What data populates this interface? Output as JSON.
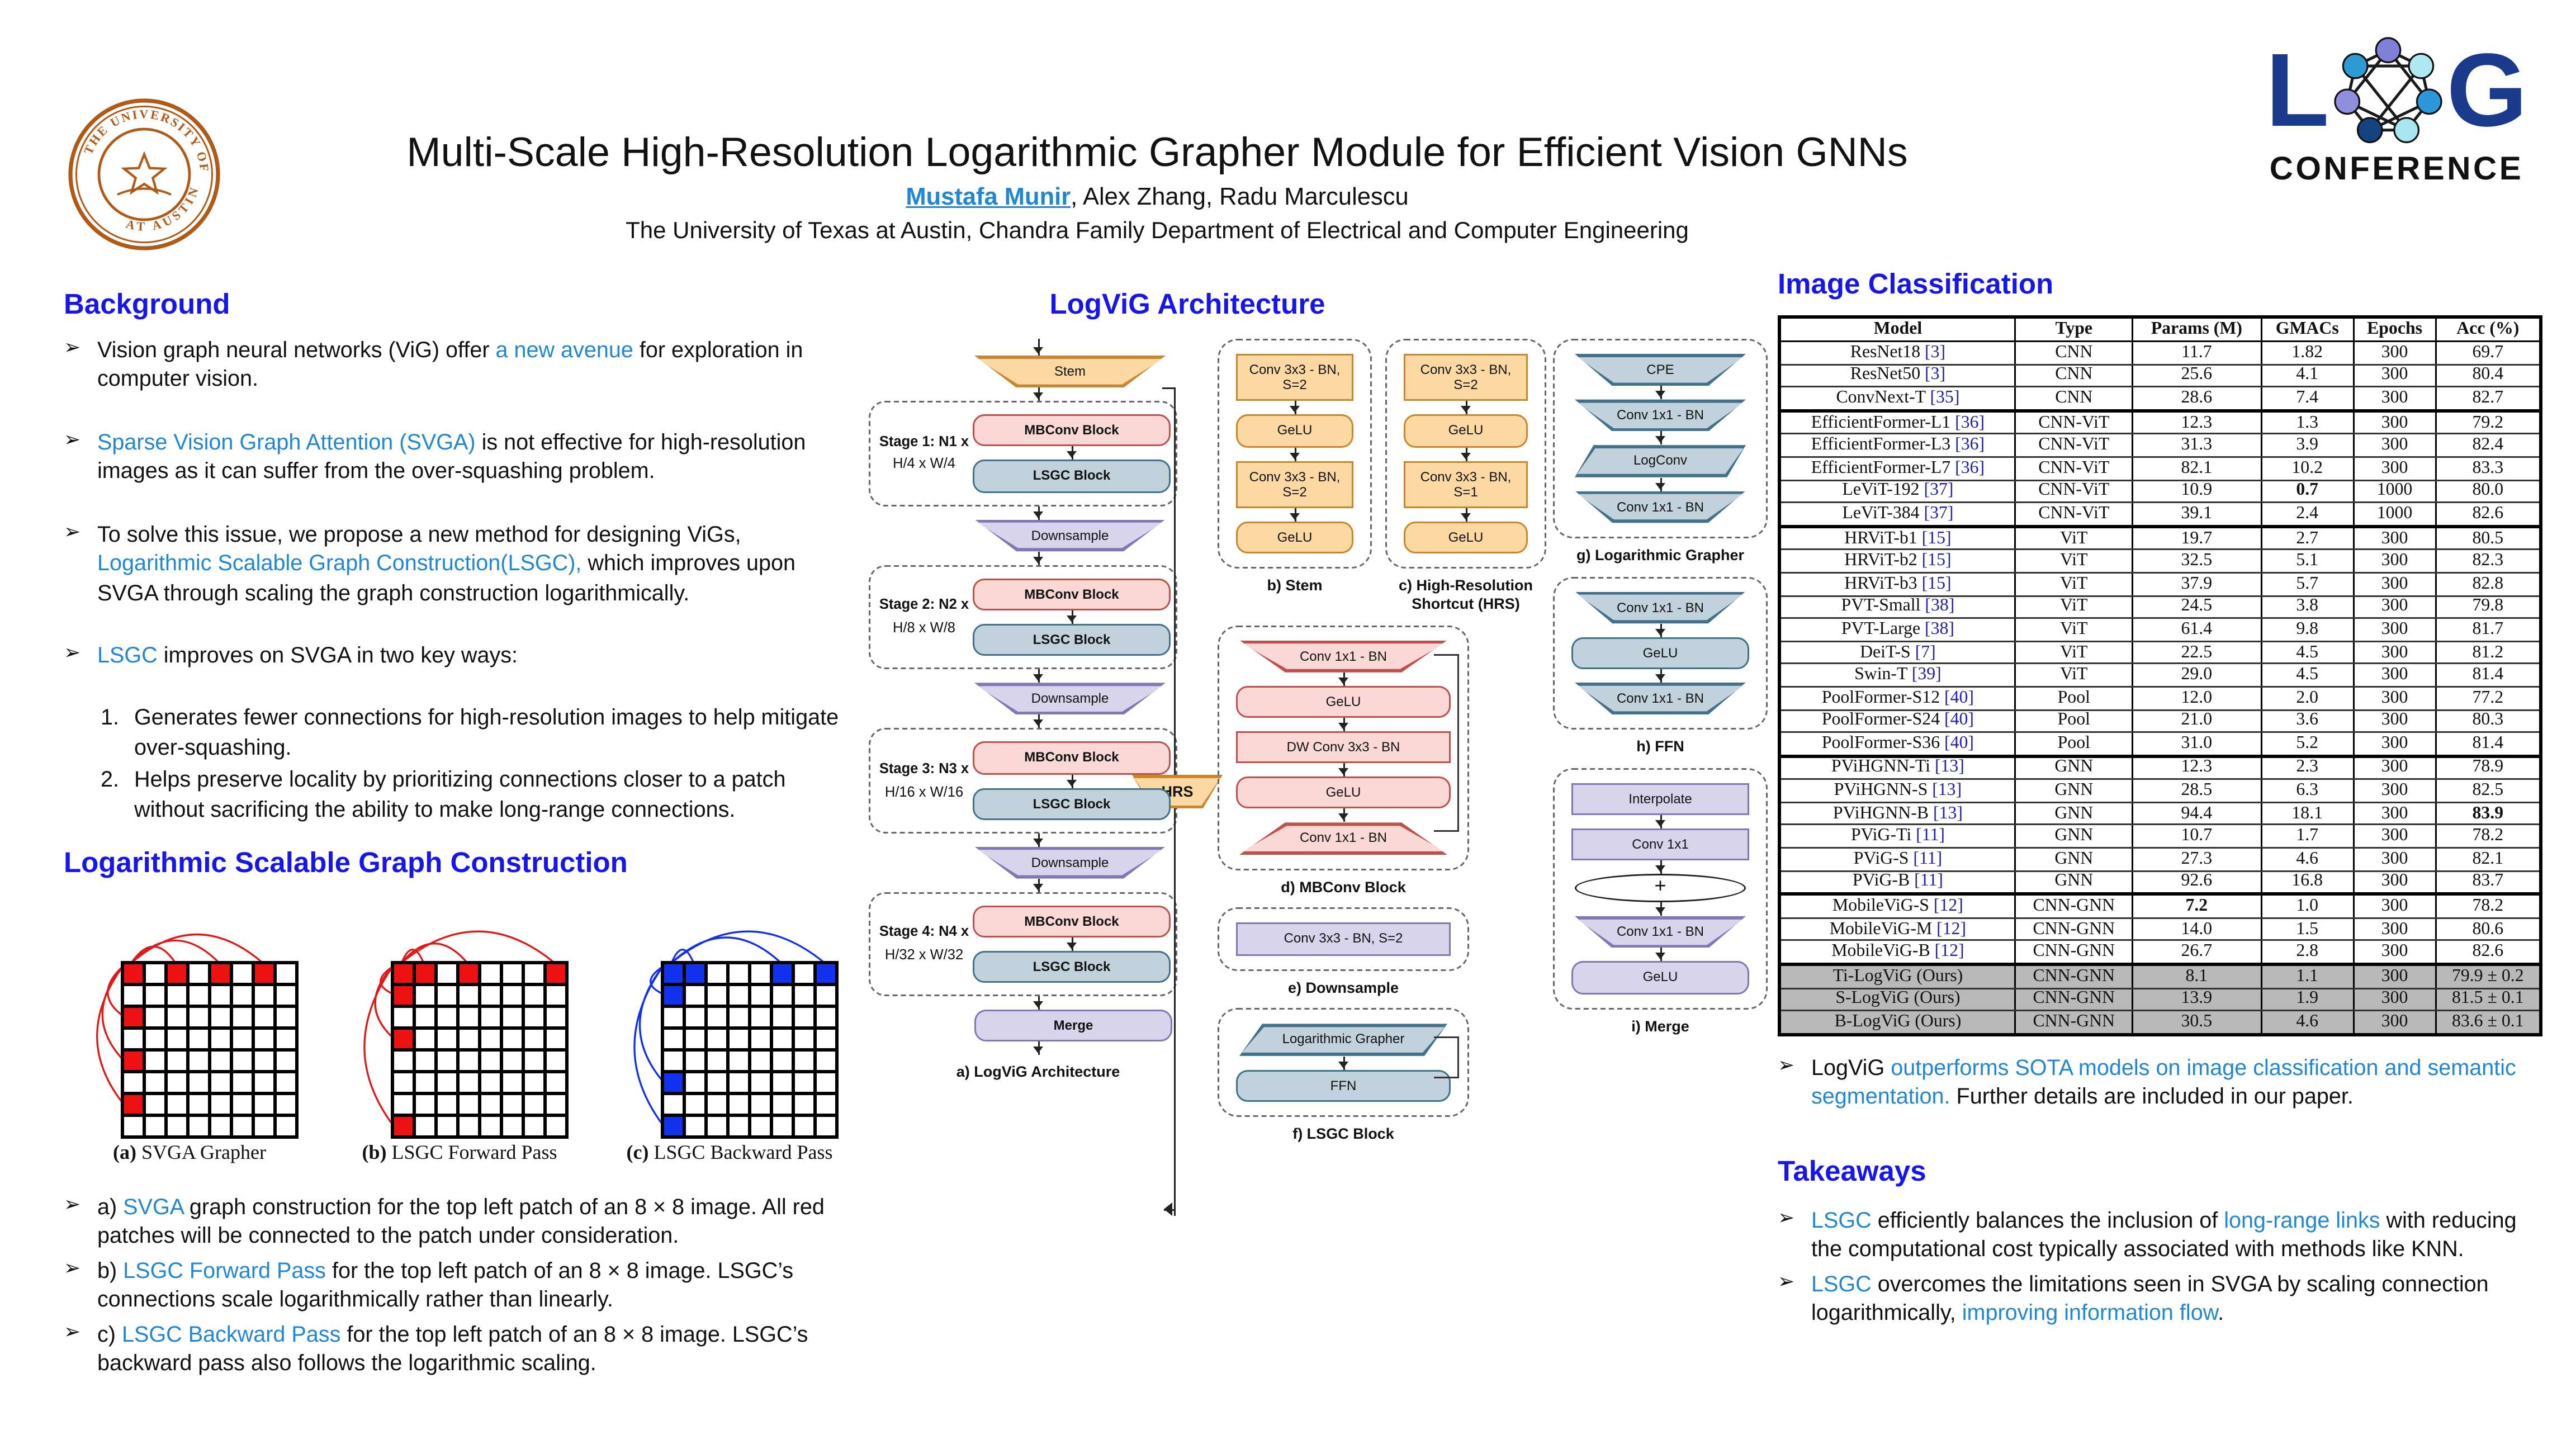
{
  "header": {
    "title": "Multi-Scale High-Resolution Logarithmic Grapher Module for Efficient Vision GNNs",
    "authors": [
      {
        "t": "Mustafa Munir",
        "hl": true
      },
      {
        "t": ", Alex Zhang, Radu Marculescu"
      }
    ],
    "affiliation": "The University of Texas at Austin, Chandra Family Department of Electrical and Computer Engineering",
    "seal": {
      "top_text": "THE UNIVERSITY OF TEXAS",
      "bottom_text": "AT AUSTIN",
      "color": "#b05a17"
    },
    "logo": {
      "letter_l": "L",
      "letter_g": "G",
      "subtitle": "CONFERENCE",
      "navy": "#1b3a8c"
    }
  },
  "background": {
    "heading": "Background",
    "bullets": [
      [
        {
          "t": "Vision graph neural networks (ViG) offer "
        },
        {
          "t": "a new avenue",
          "hl": true
        },
        {
          "t": " for exploration in computer vision."
        }
      ],
      [
        {
          "t": "Sparse Vision Graph Attention (SVGA)",
          "hl": true
        },
        {
          "t": " is not effective for high-resolution images as it can suffer from the over-squashing problem."
        }
      ],
      [
        {
          "t": "To solve this issue, we propose a new method for designing ViGs, "
        },
        {
          "t": "Logarithmic Scalable Graph Construction(LSGC),",
          "hl": true
        },
        {
          "t": "  which improves upon SVGA through scaling the graph construction logarithmically."
        }
      ],
      [
        {
          "t": "LSGC",
          "hl": true
        },
        {
          "t": " improves on SVGA in two key ways:"
        }
      ]
    ],
    "numbered": [
      "Generates fewer connections for high-resolution images to help mitigate over-squashing.",
      "Helps preserve locality by prioritizing connections closer to a patch without sacrificing the ability to make long-range connections."
    ]
  },
  "lsgc_section": {
    "heading": "Logarithmic Scalable Graph Construction",
    "figures": [
      {
        "cap_b": "(a)",
        "cap": " SVGA Grapher",
        "color": "red",
        "top_row": [
          0,
          2,
          4,
          6
        ],
        "left_col": [
          2,
          4,
          6
        ]
      },
      {
        "cap_b": "(b)",
        "cap": " LSGC Forward Pass",
        "color": "red",
        "top_row": [
          0,
          1,
          3,
          7
        ],
        "left_col": [
          1,
          3,
          7
        ]
      },
      {
        "cap_b": "(c)",
        "cap": " LSGC Backward Pass",
        "color": "blue",
        "top_row": [
          0,
          1,
          5,
          7
        ],
        "left_col": [
          1,
          5,
          7
        ]
      }
    ],
    "bullets": [
      [
        {
          "t": "a) "
        },
        {
          "t": "SVGA",
          "hl": true
        },
        {
          "t": " graph construction for the top left patch of an 8 × 8 image. All red patches will be connected to the patch under consideration."
        }
      ],
      [
        {
          "t": "b) "
        },
        {
          "t": "LSGC Forward Pass",
          "hl": true
        },
        {
          "t": " for the top left patch of an 8 × 8 image. LSGC’s connections scale logarithmically rather than linearly."
        }
      ],
      [
        {
          "t": "c) "
        },
        {
          "t": "LSGC Backward Pass",
          "hl": true
        },
        {
          "t": " for the top left patch of an 8 × 8 image. LSGC’s backward pass also follows the logarithmic scaling."
        }
      ]
    ]
  },
  "architecture": {
    "heading": "LogViG Architecture",
    "main": {
      "stem": "Stem",
      "downsample": "Downsample",
      "merge": "Merge",
      "hrs": "HRS",
      "caption": "a) LogViG Architecture",
      "stages": [
        {
          "label1": "Stage 1: N1 x",
          "label2": "H/4 x W/4",
          "blocks": [
            "MBConv Block",
            "LSGC Block"
          ]
        },
        {
          "label1": "Stage 2: N2 x",
          "label2": "H/8 x W/8",
          "blocks": [
            "MBConv Block",
            "LSGC Block"
          ]
        },
        {
          "label1": "Stage 3: N3 x",
          "label2": "H/16 x W/16",
          "blocks": [
            "MBConv Block",
            "LSGC Block"
          ]
        },
        {
          "label1": "Stage 4: N4 x",
          "label2": "H/32 x W/32",
          "blocks": [
            "MBConv Block",
            "LSGC Block"
          ]
        }
      ]
    },
    "figures": [
      {
        "id": "b",
        "caption": "b)  Stem",
        "skip": false,
        "nodes": [
          {
            "t": "Conv 3x3 - BN, S=2",
            "s": "rect",
            "c": "orange"
          },
          {
            "t": "GeLU",
            "s": "round",
            "c": "orange"
          },
          {
            "t": "Conv 3x3 - BN, S=2",
            "s": "rect",
            "c": "orange"
          },
          {
            "t": "GeLU",
            "s": "round",
            "c": "orange"
          }
        ]
      },
      {
        "id": "c",
        "caption": "c) High-Resolution Shortcut (HRS)",
        "skip": false,
        "nodes": [
          {
            "t": "Conv 3x3 - BN, S=2",
            "s": "rect",
            "c": "orange"
          },
          {
            "t": "GeLU",
            "s": "round",
            "c": "orange"
          },
          {
            "t": "Conv 3x3 - BN, S=1",
            "s": "rect",
            "c": "orange"
          },
          {
            "t": "GeLU",
            "s": "round",
            "c": "orange"
          }
        ]
      },
      {
        "id": "d",
        "caption": "d) MBConv Block",
        "skip": true,
        "nodes": [
          {
            "t": "Conv 1x1 - BN",
            "s": "trapd",
            "c": "pink"
          },
          {
            "t": "GeLU",
            "s": "round",
            "c": "pink"
          },
          {
            "t": "DW Conv 3x3 - BN",
            "s": "rect",
            "c": "pink"
          },
          {
            "t": "GeLU",
            "s": "round",
            "c": "pink"
          },
          {
            "t": "Conv 1x1 - BN",
            "s": "trapu",
            "c": "pink"
          }
        ]
      },
      {
        "id": "e",
        "caption": "e) Downsample",
        "skip": false,
        "nodes": [
          {
            "t": "Conv 3x3 - BN, S=2",
            "s": "rect",
            "c": "purple"
          }
        ]
      },
      {
        "id": "f",
        "caption": "f) LSGC Block",
        "skip": true,
        "nodes": [
          {
            "t": "Logarithmic Grapher",
            "s": "para",
            "c": "steel"
          },
          {
            "t": "FFN",
            "s": "round",
            "c": "steel"
          }
        ]
      },
      {
        "id": "g",
        "caption": "g) Logarithmic Grapher",
        "skip": false,
        "nodes": [
          {
            "t": "CPE",
            "s": "trapd",
            "c": "steel"
          },
          {
            "t": "Conv 1x1 - BN",
            "s": "trapd",
            "c": "steel"
          },
          {
            "t": "LogConv",
            "s": "para",
            "c": "steel"
          },
          {
            "t": "Conv 1x1 - BN",
            "s": "trapd",
            "c": "steel"
          }
        ]
      },
      {
        "id": "h",
        "caption": "h) FFN",
        "skip": false,
        "nodes": [
          {
            "t": "Conv 1x1 - BN",
            "s": "trapd",
            "c": "steel"
          },
          {
            "t": "GeLU",
            "s": "round",
            "c": "steel"
          },
          {
            "t": "Conv 1x1 - BN",
            "s": "trapd",
            "c": "steel"
          }
        ]
      },
      {
        "id": "i",
        "caption": "i) Merge",
        "skip": false,
        "nodes": [
          {
            "t": "Interpolate",
            "s": "rect",
            "c": "purple"
          },
          {
            "t": "Conv 1x1",
            "s": "rect",
            "c": "purple"
          },
          {
            "t": "⊕",
            "s": "plus",
            "c": "none"
          },
          {
            "t": "Conv 1x1 - BN",
            "s": "trapd",
            "c": "purple"
          },
          {
            "t": "GeLU",
            "s": "round",
            "c": "purple"
          }
        ]
      }
    ]
  },
  "classification": {
    "heading": "Image Classification",
    "table": {
      "columns": [
        "Model",
        "Type",
        "Params (M)",
        "GMACs",
        "Epochs",
        "Acc (%)"
      ],
      "rows": [
        {
          "model": "ResNet18",
          "cite": "3",
          "type": "CNN",
          "params": "11.7",
          "gmacs": "1.82",
          "epochs": "300",
          "acc": "69.7"
        },
        {
          "model": "ResNet50",
          "cite": "3",
          "type": "CNN",
          "params": "25.6",
          "gmacs": "4.1",
          "epochs": "300",
          "acc": "80.4"
        },
        {
          "model": "ConvNext-T",
          "cite": "35",
          "type": "CNN",
          "params": "28.6",
          "gmacs": "7.4",
          "epochs": "300",
          "acc": "82.7"
        },
        {
          "model": "EfficientFormer-L1",
          "cite": "36",
          "type": "CNN-ViT",
          "params": "12.3",
          "gmacs": "1.3",
          "epochs": "300",
          "acc": "79.2",
          "group": true
        },
        {
          "model": "EfficientFormer-L3",
          "cite": "36",
          "type": "CNN-ViT",
          "params": "31.3",
          "gmacs": "3.9",
          "epochs": "300",
          "acc": "82.4"
        },
        {
          "model": "EfficientFormer-L7",
          "cite": "36",
          "type": "CNN-ViT",
          "params": "82.1",
          "gmacs": "10.2",
          "epochs": "300",
          "acc": "83.3"
        },
        {
          "model": "LeViT-192",
          "cite": "37",
          "type": "CNN-ViT",
          "params": "10.9",
          "gmacs": "0.7",
          "epochs": "1000",
          "acc": "80.0",
          "b": [
            "gmacs"
          ]
        },
        {
          "model": "LeViT-384",
          "cite": "37",
          "type": "CNN-ViT",
          "params": "39.1",
          "gmacs": "2.4",
          "epochs": "1000",
          "acc": "82.6"
        },
        {
          "model": "HRViT-b1",
          "cite": "15",
          "type": "ViT",
          "params": "19.7",
          "gmacs": "2.7",
          "epochs": "300",
          "acc": "80.5",
          "group": true
        },
        {
          "model": "HRViT-b2",
          "cite": "15",
          "type": "ViT",
          "params": "32.5",
          "gmacs": "5.1",
          "epochs": "300",
          "acc": "82.3"
        },
        {
          "model": "HRViT-b3",
          "cite": "15",
          "type": "ViT",
          "params": "37.9",
          "gmacs": "5.7",
          "epochs": "300",
          "acc": "82.8"
        },
        {
          "model": "PVT-Small",
          "cite": "38",
          "type": "ViT",
          "params": "24.5",
          "gmacs": "3.8",
          "epochs": "300",
          "acc": "79.8"
        },
        {
          "model": "PVT-Large",
          "cite": "38",
          "type": "ViT",
          "params": "61.4",
          "gmacs": "9.8",
          "epochs": "300",
          "acc": "81.7"
        },
        {
          "model": "DeiT-S",
          "cite": "7",
          "type": "ViT",
          "params": "22.5",
          "gmacs": "4.5",
          "epochs": "300",
          "acc": "81.2"
        },
        {
          "model": "Swin-T",
          "cite": "39",
          "type": "ViT",
          "params": "29.0",
          "gmacs": "4.5",
          "epochs": "300",
          "acc": "81.4"
        },
        {
          "model": "PoolFormer-S12",
          "cite": "40",
          "type": "Pool",
          "params": "12.0",
          "gmacs": "2.0",
          "epochs": "300",
          "acc": "77.2"
        },
        {
          "model": "PoolFormer-S24",
          "cite": "40",
          "type": "Pool",
          "params": "21.0",
          "gmacs": "3.6",
          "epochs": "300",
          "acc": "80.3"
        },
        {
          "model": "PoolFormer-S36",
          "cite": "40",
          "type": "Pool",
          "params": "31.0",
          "gmacs": "5.2",
          "epochs": "300",
          "acc": "81.4"
        },
        {
          "model": "PViHGNN-Ti",
          "cite": "13",
          "type": "GNN",
          "params": "12.3",
          "gmacs": "2.3",
          "epochs": "300",
          "acc": "78.9",
          "group": true
        },
        {
          "model": "PViHGNN-S",
          "cite": "13",
          "type": "GNN",
          "params": "28.5",
          "gmacs": "6.3",
          "epochs": "300",
          "acc": "82.5"
        },
        {
          "model": "PViHGNN-B",
          "cite": "13",
          "type": "GNN",
          "params": "94.4",
          "gmacs": "18.1",
          "epochs": "300",
          "acc": "83.9",
          "b": [
            "acc"
          ]
        },
        {
          "model": "PViG-Ti",
          "cite": "11",
          "type": "GNN",
          "params": "10.7",
          "gmacs": "1.7",
          "epochs": "300",
          "acc": "78.2"
        },
        {
          "model": "PViG-S",
          "cite": "11",
          "type": "GNN",
          "params": "27.3",
          "gmacs": "4.6",
          "epochs": "300",
          "acc": "82.1"
        },
        {
          "model": "PViG-B",
          "cite": "11",
          "type": "GNN",
          "params": "92.6",
          "gmacs": "16.8",
          "epochs": "300",
          "acc": "83.7"
        },
        {
          "model": "MobileViG-S",
          "cite": "12",
          "type": "CNN-GNN",
          "params": "7.2",
          "gmacs": "1.0",
          "epochs": "300",
          "acc": "78.2",
          "group": true,
          "b": [
            "params"
          ]
        },
        {
          "model": "MobileViG-M",
          "cite": "12",
          "type": "CNN-GNN",
          "params": "14.0",
          "gmacs": "1.5",
          "epochs": "300",
          "acc": "80.6"
        },
        {
          "model": "MobileViG-B",
          "cite": "12",
          "type": "CNN-GNN",
          "params": "26.7",
          "gmacs": "2.8",
          "epochs": "300",
          "acc": "82.6"
        },
        {
          "model": "Ti-LogViG (Ours)",
          "cite": null,
          "type": "CNN-GNN",
          "params": "8.1",
          "gmacs": "1.1",
          "epochs": "300",
          "acc": "79.9 ± 0.2",
          "group": true,
          "ours": true
        },
        {
          "model": "S-LogViG (Ours)",
          "cite": null,
          "type": "CNN-GNN",
          "params": "13.9",
          "gmacs": "1.9",
          "epochs": "300",
          "acc": "81.5 ± 0.1",
          "ours": true
        },
        {
          "model": "B-LogViG (Ours)",
          "cite": null,
          "type": "CNN-GNN",
          "params": "30.5",
          "gmacs": "4.6",
          "epochs": "300",
          "acc": "83.6 ± 0.1",
          "ours": true
        }
      ]
    },
    "bullet": [
      [
        {
          "t": "LogViG "
        },
        {
          "t": "outperforms SOTA models on image classification and semantic segmentation.",
          "hl": true
        },
        {
          "t": " Further details are included in our paper."
        }
      ]
    ]
  },
  "takeaways": {
    "heading": "Takeaways",
    "bullets": [
      [
        {
          "t": "LSGC",
          "hl": true
        },
        {
          "t": " efficiently balances the inclusion of "
        },
        {
          "t": "long-range links",
          "hl": true
        },
        {
          "t": " with reducing the computational cost typically associated with methods like KNN."
        }
      ],
      [
        {
          "t": "LSGC",
          "hl": true
        },
        {
          "t": " overcomes the limitations seen in SVGA by scaling connection logarithmically, "
        },
        {
          "t": "improving information flow",
          "hl": true
        },
        {
          "t": "."
        }
      ]
    ]
  }
}
